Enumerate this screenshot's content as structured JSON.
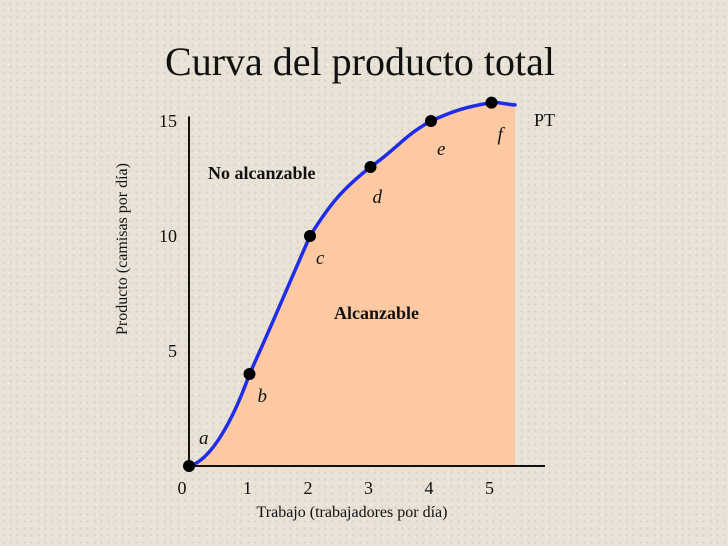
{
  "slide": {
    "title": "Curva del producto total"
  },
  "chart_data": {
    "type": "line",
    "xlabel": "Trabajo (trabajadores por día)",
    "ylabel": "Producto (camisas por día)",
    "x_ticks": [
      "0",
      "1",
      "2",
      "3",
      "4",
      "5"
    ],
    "y_ticks": [
      "5",
      "10",
      "15"
    ],
    "xlim": [
      0,
      6
    ],
    "ylim": [
      0,
      16
    ],
    "curve_label": "PT",
    "regions": {
      "above": "No alcanzable",
      "below": "Alcanzable"
    },
    "colors": {
      "curve": "#1f2ee6",
      "fill": "#fcc9a2",
      "point": "#000000"
    },
    "points": [
      {
        "label": "a",
        "x": 0,
        "y": 0
      },
      {
        "label": "b",
        "x": 1,
        "y": 4
      },
      {
        "label": "c",
        "x": 2,
        "y": 10
      },
      {
        "label": "d",
        "x": 3,
        "y": 13
      },
      {
        "label": "e",
        "x": 4,
        "y": 15
      },
      {
        "label": "f",
        "x": 5,
        "y": 15.8
      }
    ]
  }
}
